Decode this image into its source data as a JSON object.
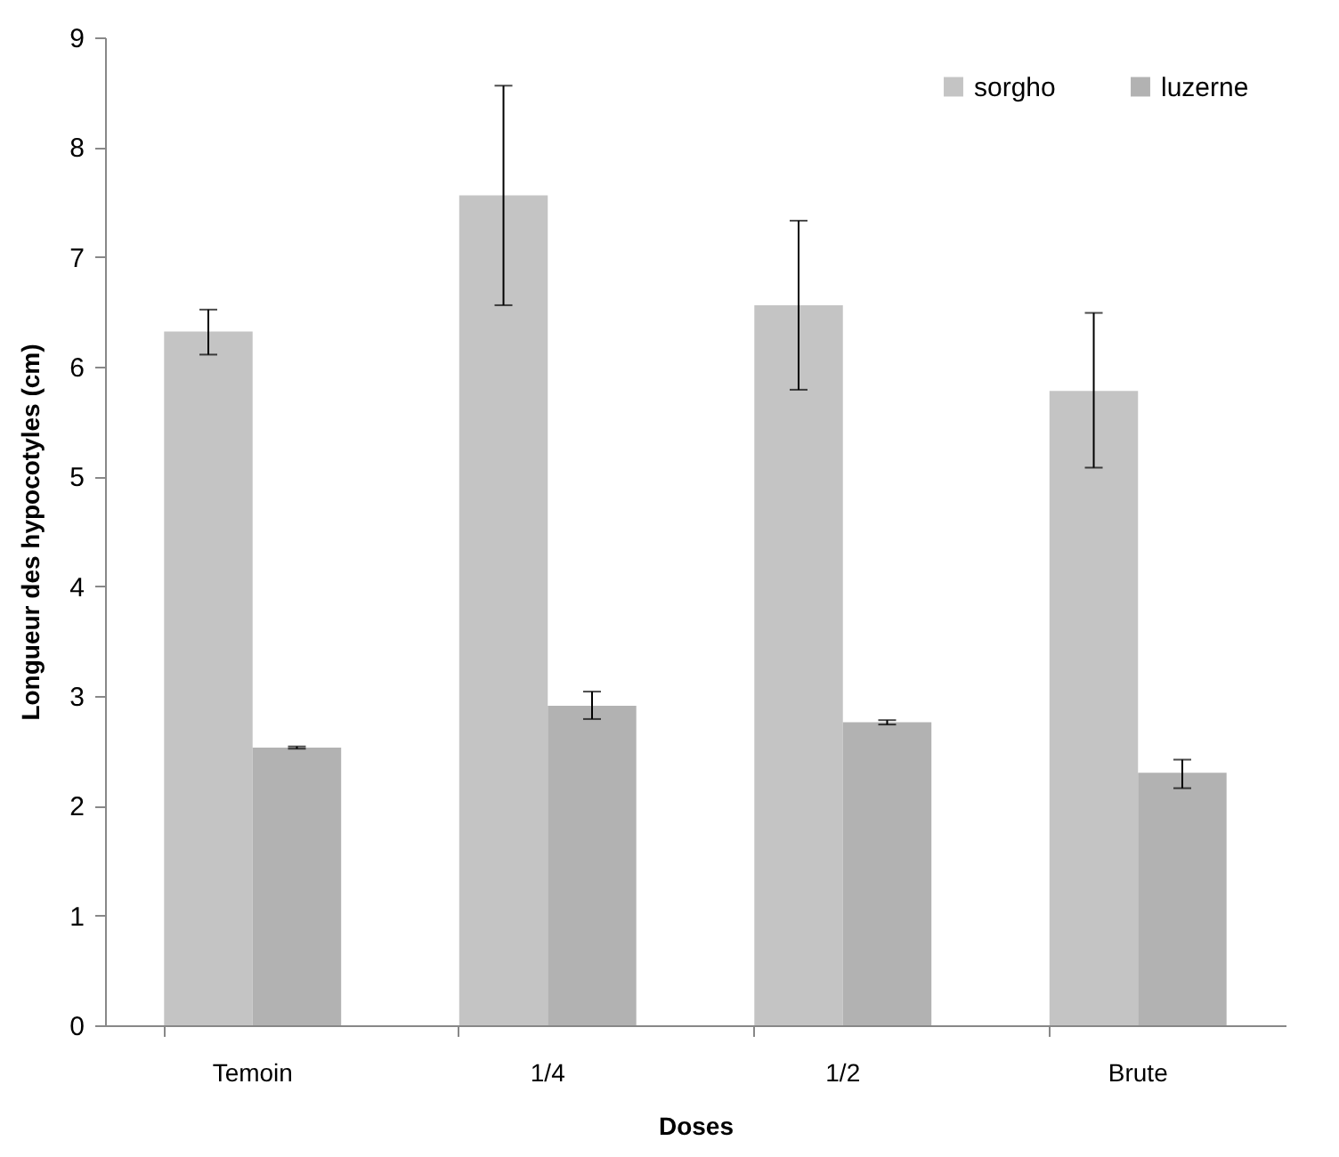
{
  "chart_data": {
    "type": "bar",
    "xlabel": "Doses",
    "ylabel": "Longueur des hypocotyles (cm)",
    "categories": [
      "Temoin",
      "1/4",
      "1/2",
      "Brute"
    ],
    "series": [
      {
        "name": "sorgho",
        "color": "#c4c4c4",
        "values": [
          6.32,
          7.56,
          6.56,
          5.78
        ],
        "errors": [
          [
            6.11,
            6.52
          ],
          [
            6.56,
            8.56
          ],
          [
            5.79,
            7.33
          ],
          [
            5.08,
            6.49
          ]
        ]
      },
      {
        "name": "luzerne",
        "color": "#b2b2b2",
        "values": [
          2.53,
          2.91,
          2.76,
          2.3
        ],
        "errors": [
          [
            2.52,
            2.54
          ],
          [
            2.79,
            3.04
          ],
          [
            2.74,
            2.78
          ],
          [
            2.16,
            2.42
          ]
        ]
      }
    ],
    "ylim": [
      0,
      9
    ],
    "yticks": [
      0,
      1,
      2,
      3,
      4,
      5,
      6,
      7,
      8,
      9
    ],
    "grid": false,
    "legend": "top right"
  }
}
